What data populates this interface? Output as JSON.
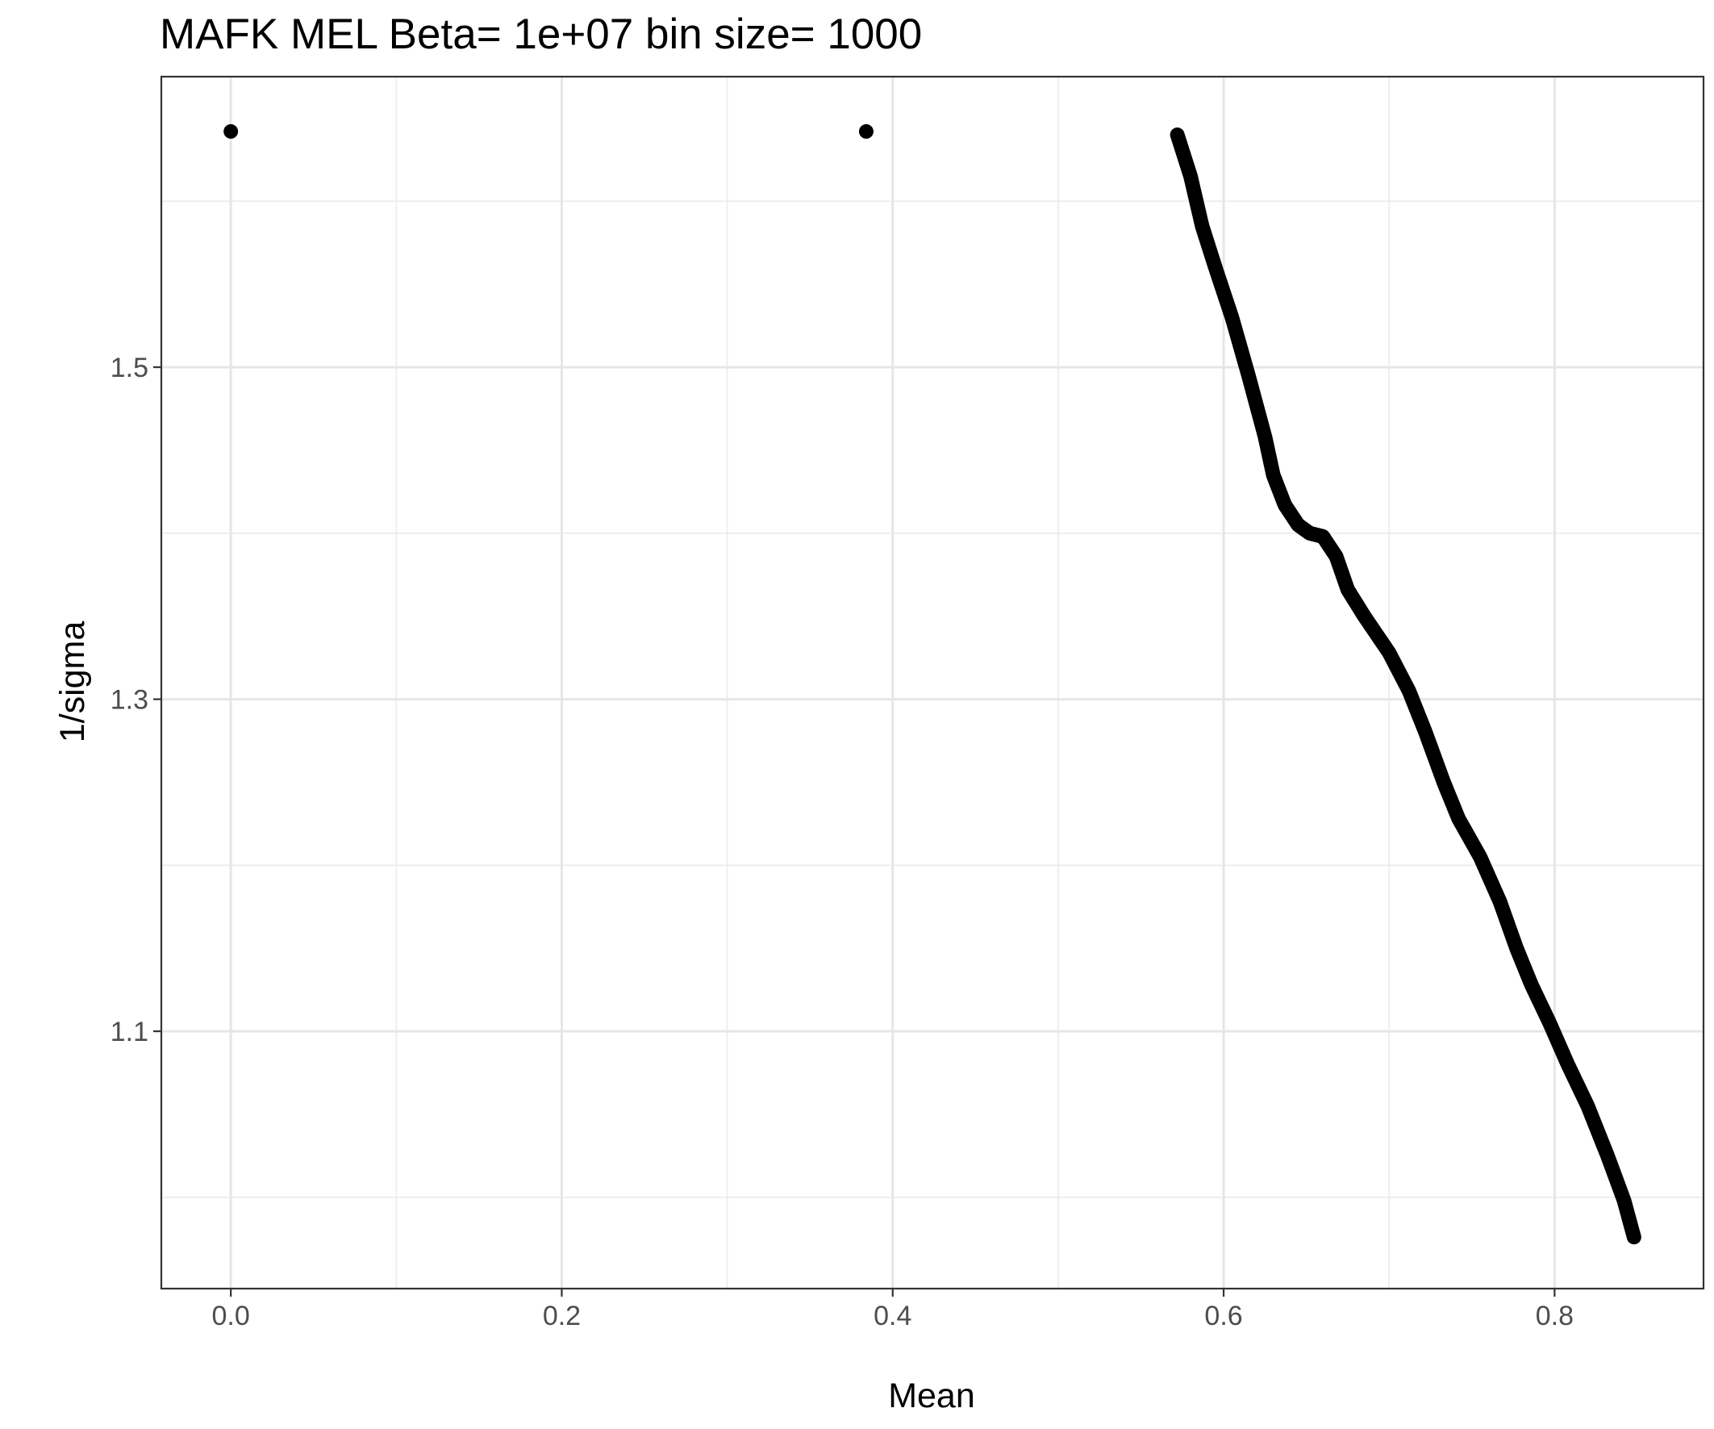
{
  "chart_data": {
    "type": "scatter",
    "title": "MAFK MEL  Beta=  1e+07  bin size=  1000",
    "xlabel": "Mean",
    "ylabel": "1/sigma",
    "xlim": [
      -0.042,
      0.89
    ],
    "ylim": [
      0.945,
      1.675
    ],
    "x_ticks": [
      0.0,
      0.2,
      0.4,
      0.6,
      0.8
    ],
    "x_tick_labels": [
      "0.0",
      "0.2",
      "0.4",
      "0.6",
      "0.8"
    ],
    "y_ticks": [
      1.1,
      1.3,
      1.5
    ],
    "y_tick_labels": [
      "1.1",
      "1.3",
      "1.5"
    ],
    "x_minor_ticks": [
      0.1,
      0.3,
      0.5,
      0.7
    ],
    "y_minor_ticks": [
      1.0,
      1.2,
      1.4,
      1.6
    ],
    "grid": true,
    "point_color": "#000000",
    "isolated_points": [
      {
        "x": 0.0,
        "y": 1.642
      },
      {
        "x": 0.384,
        "y": 1.642
      }
    ],
    "dense_series": [
      {
        "x": 0.572,
        "y": 1.64
      },
      {
        "x": 0.58,
        "y": 1.615
      },
      {
        "x": 0.587,
        "y": 1.585
      },
      {
        "x": 0.595,
        "y": 1.56
      },
      {
        "x": 0.605,
        "y": 1.53
      },
      {
        "x": 0.615,
        "y": 1.495
      },
      {
        "x": 0.625,
        "y": 1.458
      },
      {
        "x": 0.63,
        "y": 1.435
      },
      {
        "x": 0.637,
        "y": 1.417
      },
      {
        "x": 0.645,
        "y": 1.405
      },
      {
        "x": 0.652,
        "y": 1.4
      },
      {
        "x": 0.66,
        "y": 1.398
      },
      {
        "x": 0.668,
        "y": 1.386
      },
      {
        "x": 0.675,
        "y": 1.366
      },
      {
        "x": 0.685,
        "y": 1.35
      },
      {
        "x": 0.7,
        "y": 1.328
      },
      {
        "x": 0.712,
        "y": 1.305
      },
      {
        "x": 0.722,
        "y": 1.28
      },
      {
        "x": 0.733,
        "y": 1.25
      },
      {
        "x": 0.742,
        "y": 1.228
      },
      {
        "x": 0.755,
        "y": 1.205
      },
      {
        "x": 0.767,
        "y": 1.178
      },
      {
        "x": 0.777,
        "y": 1.15
      },
      {
        "x": 0.786,
        "y": 1.128
      },
      {
        "x": 0.797,
        "y": 1.105
      },
      {
        "x": 0.808,
        "y": 1.08
      },
      {
        "x": 0.82,
        "y": 1.055
      },
      {
        "x": 0.832,
        "y": 1.025
      },
      {
        "x": 0.842,
        "y": 0.998
      },
      {
        "x": 0.848,
        "y": 0.976
      }
    ]
  }
}
